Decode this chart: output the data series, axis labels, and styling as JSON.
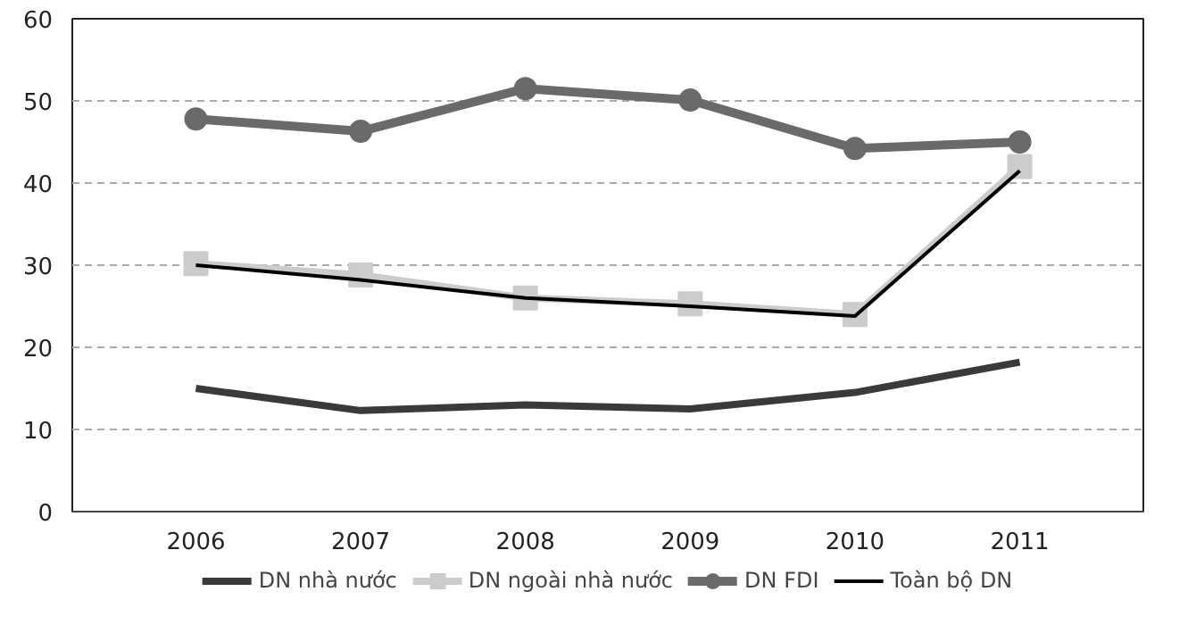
{
  "chart_data": {
    "type": "line",
    "categories": [
      "2006",
      "2007",
      "2008",
      "2009",
      "2010",
      "2011"
    ],
    "series": [
      {
        "name": "DN nhà nước",
        "color": "#3a3a3a",
        "marker": "none",
        "values": [
          15,
          12.3,
          13,
          12.5,
          14.5,
          18.2
        ]
      },
      {
        "name": "DN ngoài nhà nước",
        "color": "#cccccc",
        "marker": "square",
        "values": [
          30.2,
          28.8,
          26,
          25.3,
          24,
          42
        ]
      },
      {
        "name": "DN FDI",
        "color": "#6a6a6a",
        "marker": "circle",
        "values": [
          47.8,
          46.3,
          51.5,
          50.1,
          44.2,
          45
        ]
      },
      {
        "name": "Toàn bộ DN",
        "color": "#000000",
        "marker": "none",
        "values": [
          30,
          28.2,
          26,
          25,
          23.8,
          41.5
        ]
      }
    ],
    "ylim": [
      0,
      60
    ],
    "yticks": [
      0,
      10,
      20,
      30,
      40,
      50,
      60
    ],
    "grid": "y",
    "legend": "bottom"
  }
}
